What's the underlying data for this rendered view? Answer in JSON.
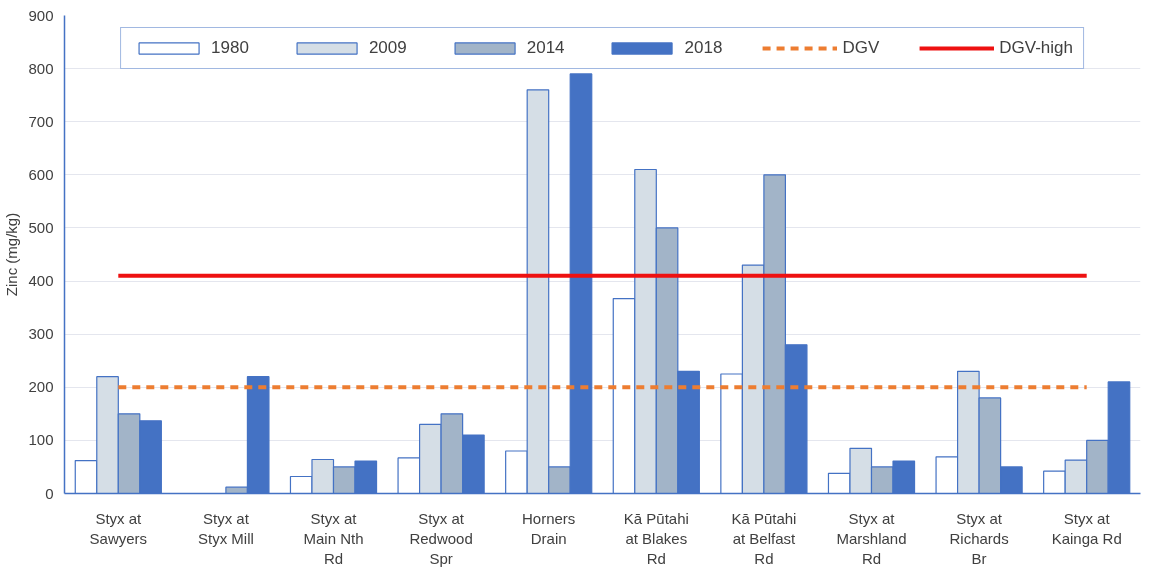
{
  "chart_data": {
    "type": "bar",
    "ylabel": "Zinc (mg/kg)",
    "categories": [
      "Styx at Sawyers",
      "Styx at Styx Mill",
      "Styx at Main Nth Rd",
      "Styx at Redwood Spr",
      "Horners Drain",
      "Kā Pūtahi at Blakes Rd",
      "Kā Pūtahi at Belfast Rd",
      "Styx at Marshland Rd",
      "Styx at Richards Br",
      "Styx at Kainga Rd"
    ],
    "series": [
      {
        "name": "1980",
        "color": "#ffffff",
        "values": [
          62,
          null,
          32,
          67,
          80,
          367,
          225,
          38,
          69,
          42
        ]
      },
      {
        "name": "2009",
        "color": "#d5dee6",
        "values": [
          220,
          null,
          64,
          130,
          760,
          610,
          430,
          85,
          230,
          63
        ]
      },
      {
        "name": "2014",
        "color": "#a2b4c8",
        "values": [
          150,
          12,
          50,
          150,
          50,
          500,
          600,
          50,
          180,
          100
        ]
      },
      {
        "name": "2018",
        "color": "#4472c4",
        "values": [
          137,
          220,
          61,
          110,
          790,
          230,
          280,
          61,
          50,
          210
        ]
      },
      {
        "name": "DGV",
        "type": "line",
        "color": "#ed7d31",
        "line_style": "dashed",
        "values": [
          200,
          200,
          200,
          200,
          200,
          200,
          200,
          200,
          200,
          200
        ]
      },
      {
        "name": "DGV-high",
        "type": "line",
        "color": "#ee1111",
        "line_style": "solid",
        "values": [
          410,
          410,
          410,
          410,
          410,
          410,
          410,
          410,
          410,
          410
        ]
      }
    ],
    "ylim": [
      0,
      900
    ],
    "yticks": [
      0,
      100,
      200,
      300,
      400,
      500,
      600,
      700,
      800,
      900
    ],
    "grid": "y",
    "legend": "top"
  }
}
